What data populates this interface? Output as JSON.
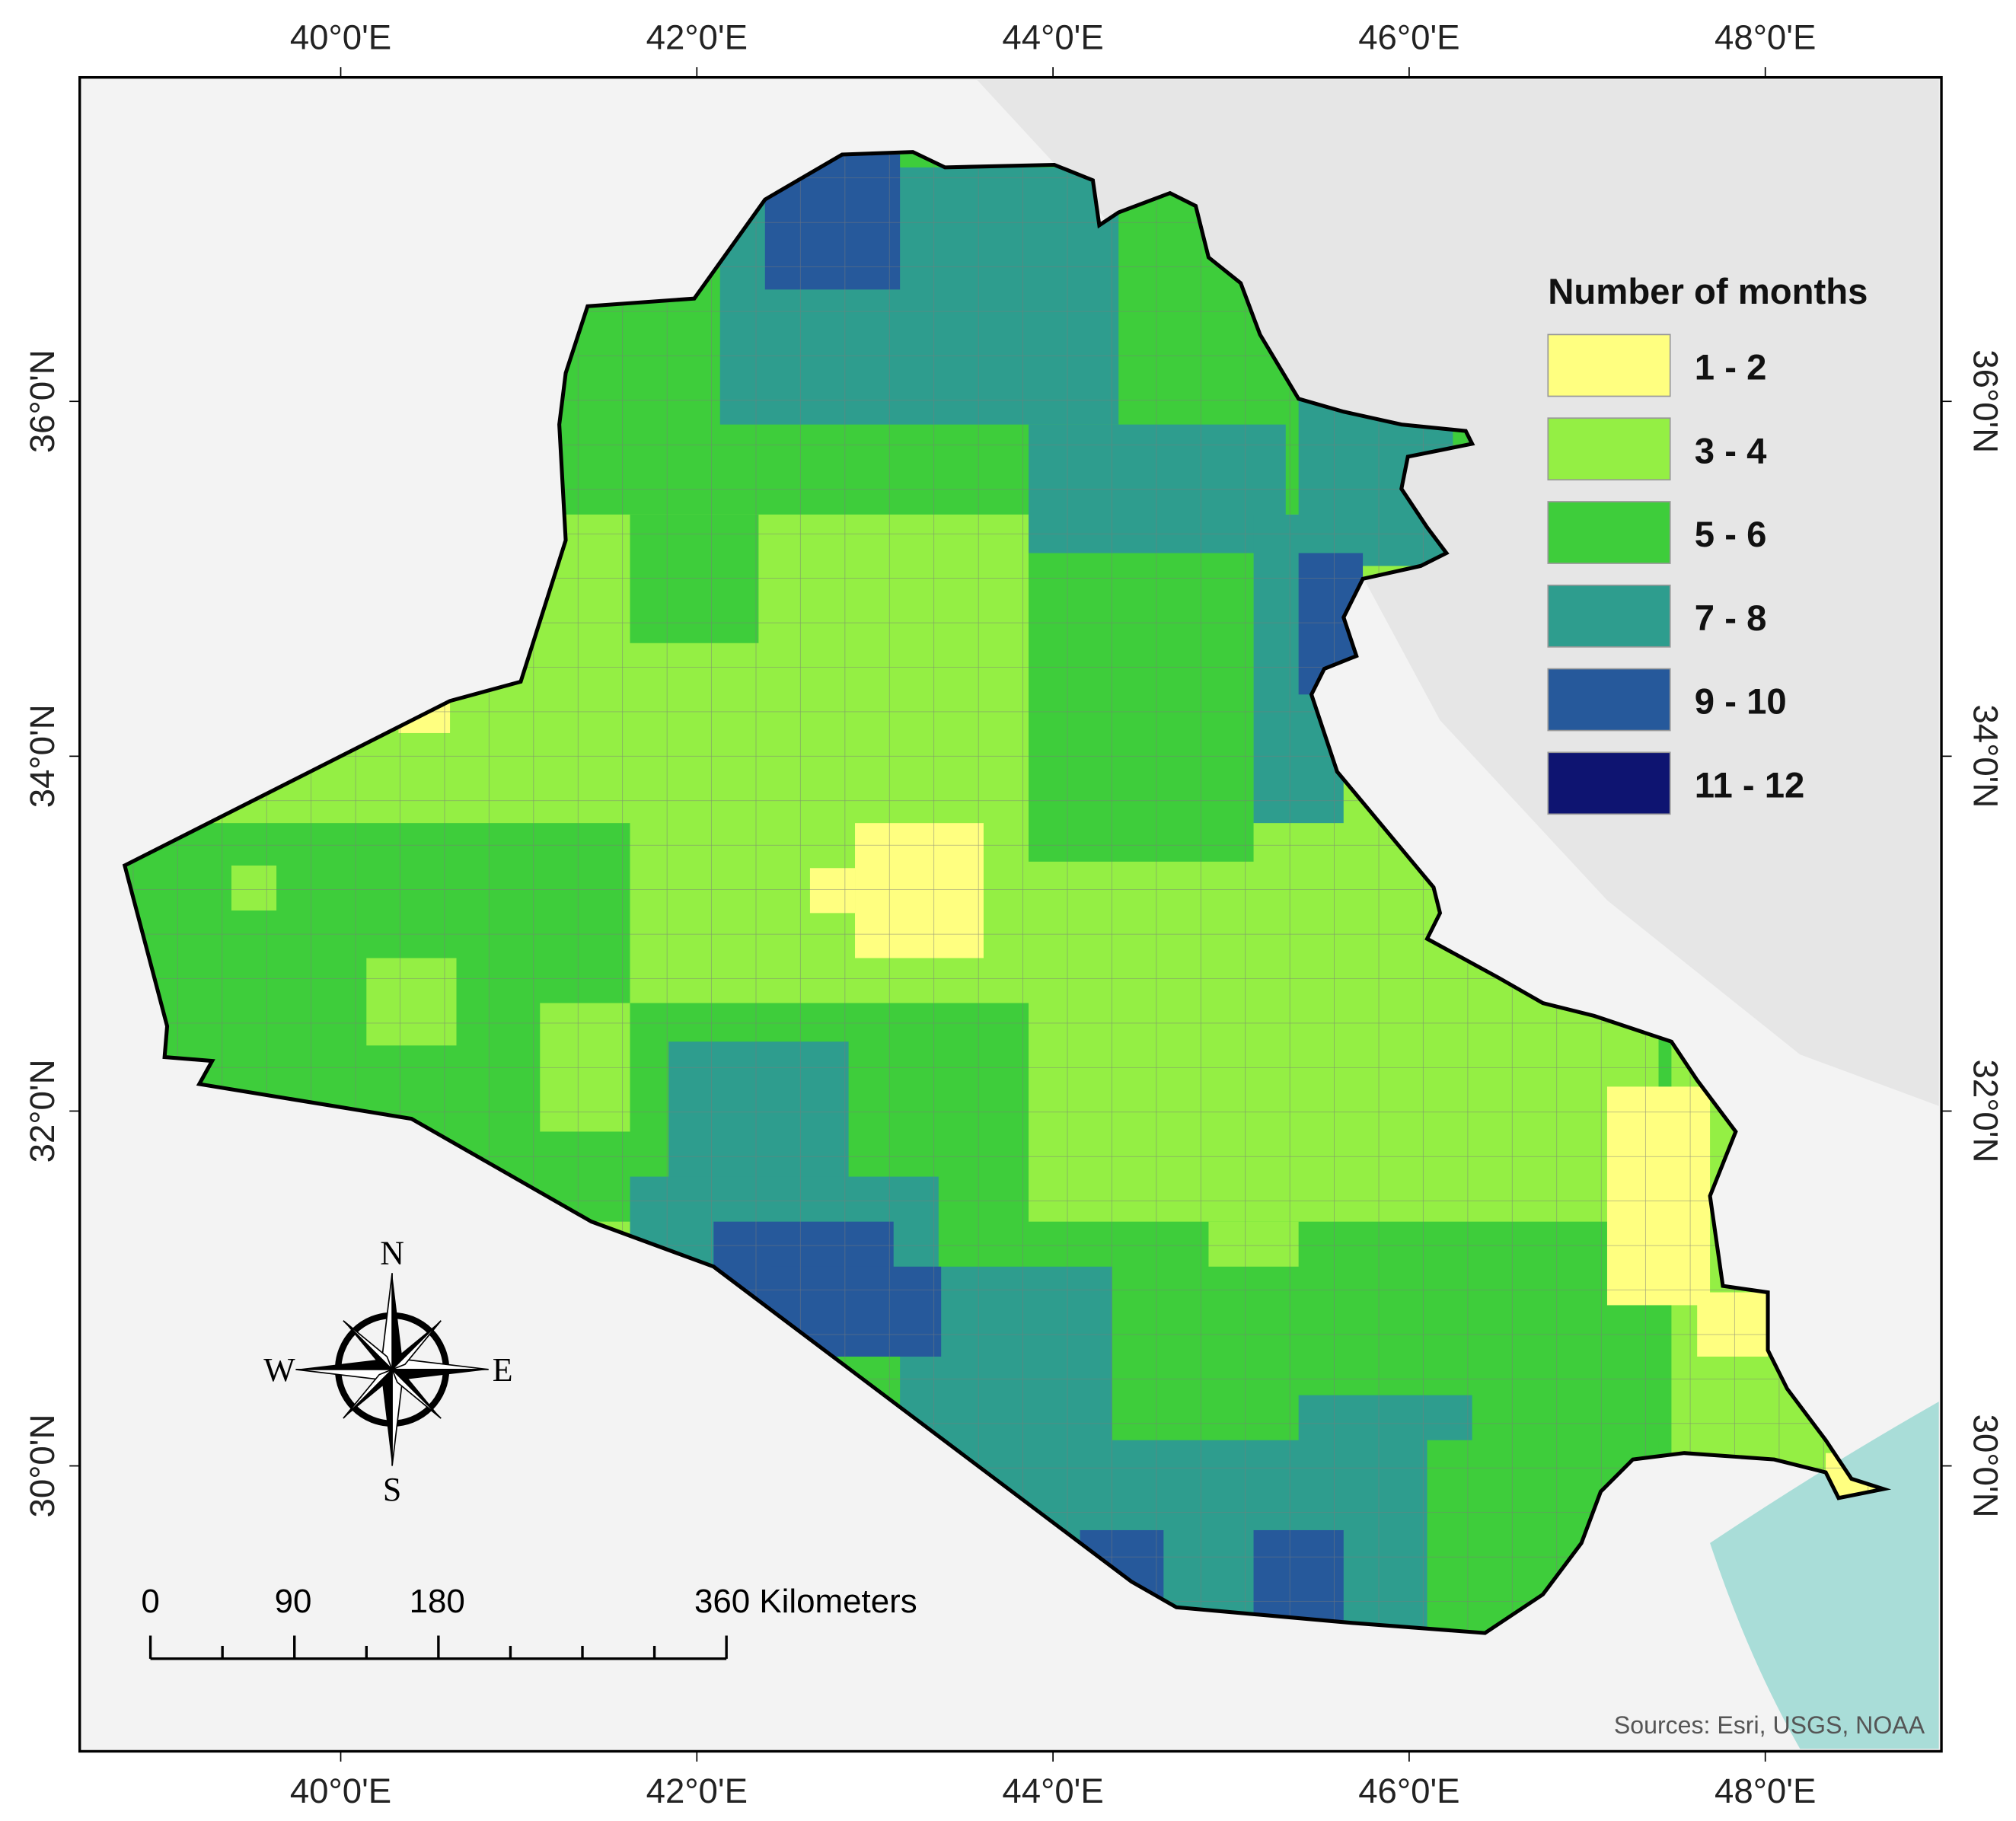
{
  "map": {
    "x_ticks": [
      {
        "value": 40,
        "label": "40°0'E"
      },
      {
        "value": 42,
        "label": "42°0'E"
      },
      {
        "value": 44,
        "label": "44°0'E"
      },
      {
        "value": 46,
        "label": "46°0'E"
      },
      {
        "value": 48,
        "label": "48°0'E"
      }
    ],
    "y_ticks": [
      {
        "value": 36,
        "label": "36°0'N"
      },
      {
        "value": 34,
        "label": "34°0'N"
      },
      {
        "value": 32,
        "label": "32°0'N"
      },
      {
        "value": 30,
        "label": "30°0'N"
      }
    ],
    "legend": {
      "title": "Number of months",
      "items": [
        {
          "label": "1 - 2",
          "color": "#ffff80"
        },
        {
          "label": "3 - 4",
          "color": "#94ef44"
        },
        {
          "label": "5 - 6",
          "color": "#3ecd3b"
        },
        {
          "label": "7 - 8",
          "color": "#2e9d8e"
        },
        {
          "label": "9 - 10",
          "color": "#26599b"
        },
        {
          "label": "11 - 12",
          "color": "#0e1471"
        }
      ]
    },
    "compass": {
      "n": "N",
      "s": "S",
      "w": "W",
      "e": "E"
    },
    "scale_bar": {
      "labels": [
        "0",
        "90",
        "180",
        "360 Kilometers"
      ]
    },
    "source": "Sources: Esri, USGS, NOAA"
  }
}
